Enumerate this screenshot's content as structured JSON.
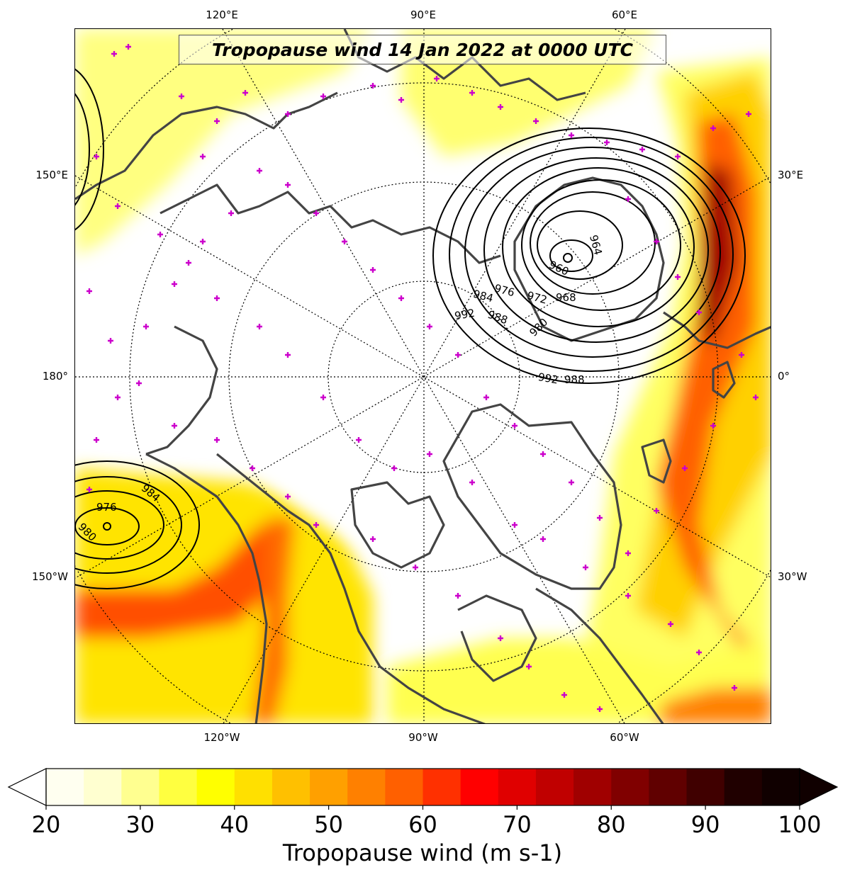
{
  "title": "Tropopause wind 14 Jan 2022 at 0000 UTC",
  "colorbar": {
    "label": "Tropopause wind (m s-1)",
    "ticks": [
      "20",
      "30",
      "40",
      "50",
      "60",
      "70",
      "80",
      "90",
      "100"
    ],
    "min": 20,
    "max": 100,
    "extend": "both",
    "colors": [
      "#fffff0",
      "#ffffd0",
      "#ffff90",
      "#ffff40",
      "#ffff00",
      "#ffe000",
      "#ffc000",
      "#ffa000",
      "#ff8000",
      "#ff6000",
      "#ff3000",
      "#ff0000",
      "#e00000",
      "#c00000",
      "#a00000",
      "#800000",
      "#600000",
      "#400000",
      "#200000",
      "#100000"
    ]
  },
  "axis_labels": {
    "top": [
      "120°E",
      "90°E",
      "60°E"
    ],
    "bottom": [
      "120°W",
      "90°W",
      "60°W"
    ],
    "left": [
      "150°E",
      "180°",
      "150°W"
    ],
    "right": [
      "30°E",
      "0°",
      "30°W"
    ]
  },
  "map": {
    "projection": "north-polar-stereographic",
    "field": "tropopause wind speed",
    "contour_variable": "mean sea level pressure",
    "contour_labels_atlantic_low": [
      "964",
      "960",
      "968",
      "972",
      "976",
      "980",
      "984",
      "988",
      "992",
      "992",
      "988"
    ],
    "contour_labels_pacific_low": [
      "976",
      "980",
      "984"
    ],
    "station_marker_color": "#cc00cc",
    "coastline_color": "#444444",
    "contour_color": "#000000"
  }
}
